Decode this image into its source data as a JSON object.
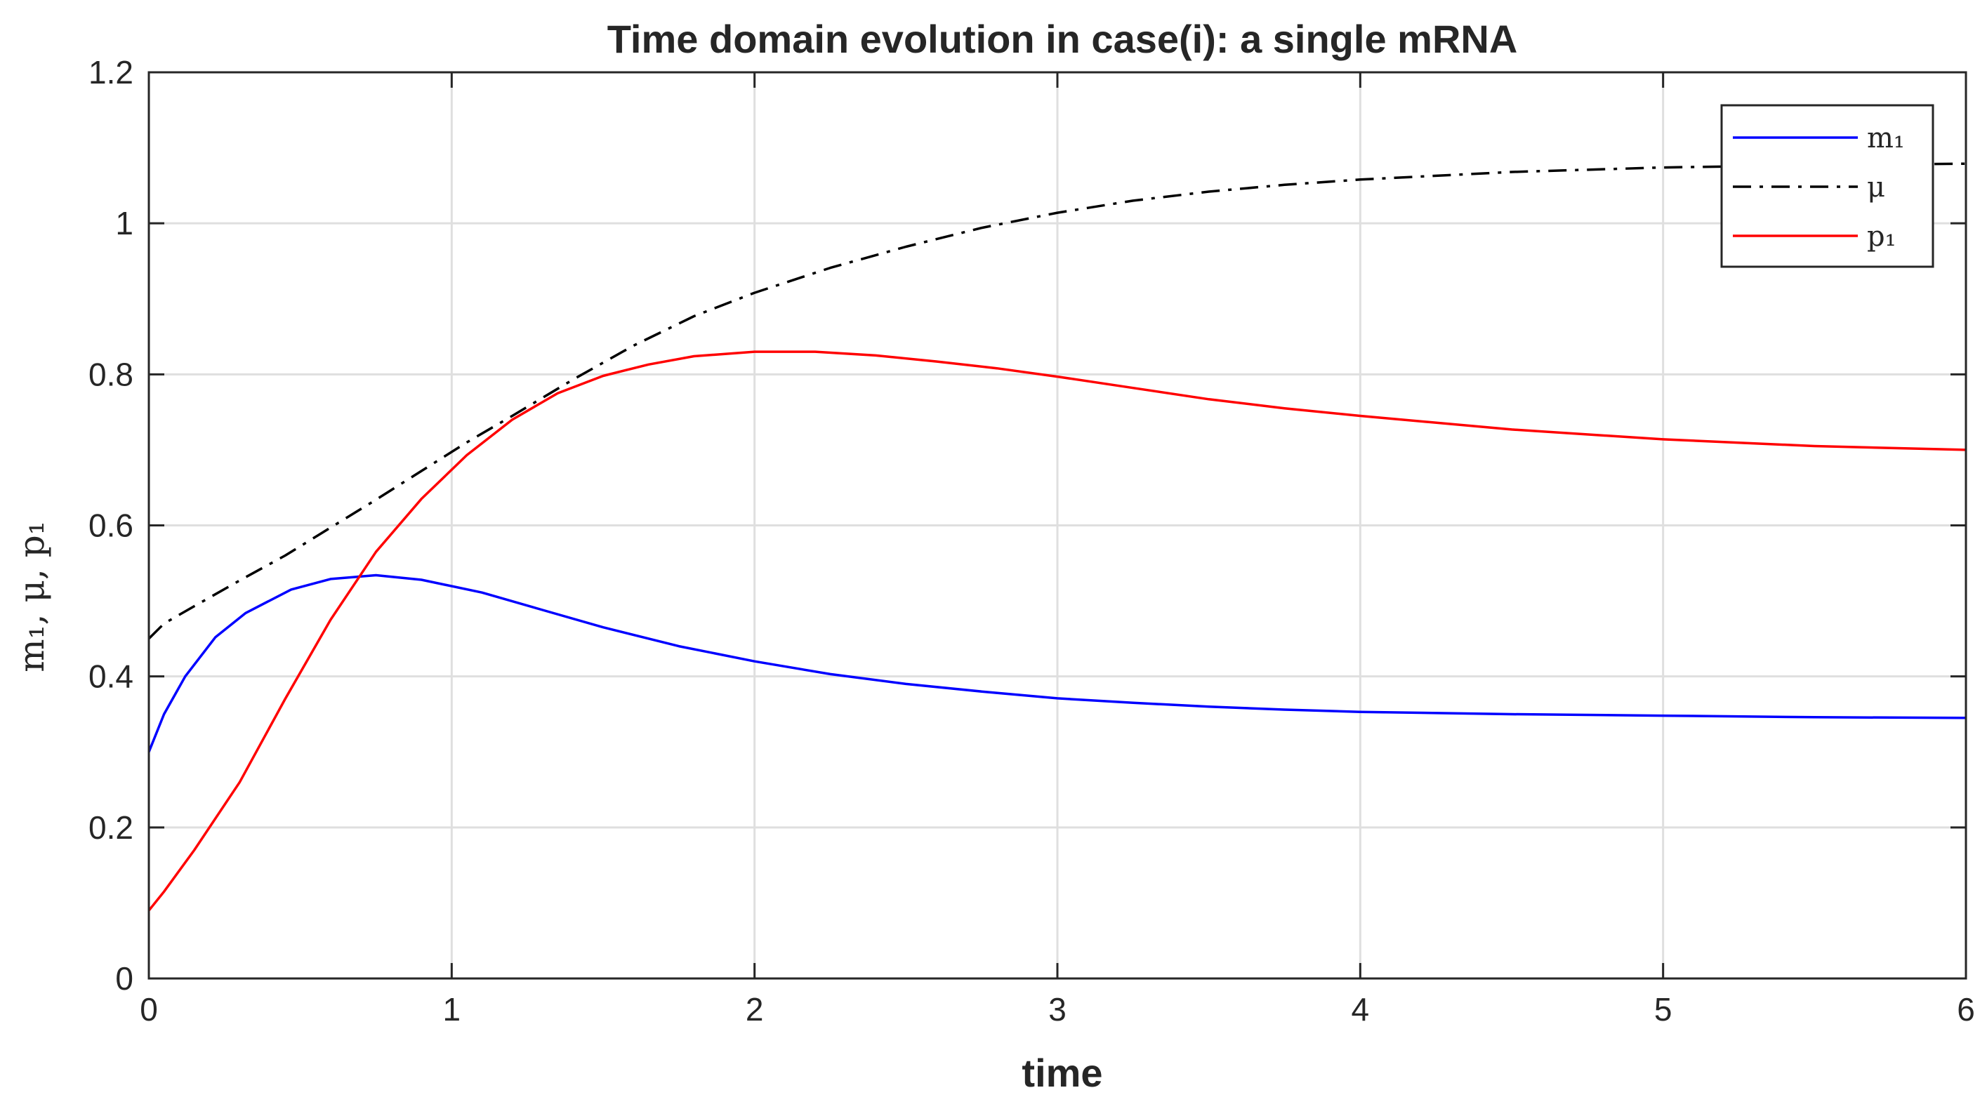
{
  "chart_data": {
    "type": "line",
    "title": "Time domain evolution in case(i): a single mRNA",
    "xlabel": "time",
    "ylabel": "m₁, μ, p₁",
    "xlim": [
      0,
      6
    ],
    "ylim": [
      0,
      1.2
    ],
    "xticks": [
      "0",
      "1",
      "2",
      "3",
      "4",
      "5",
      "6"
    ],
    "yticks": [
      "0",
      "0.2",
      "0.4",
      "0.6",
      "0.8",
      "1",
      "1.2"
    ],
    "grid": true,
    "legend_position": "top-right",
    "series": [
      {
        "name": "m₁",
        "color": "#0000ff",
        "dash": "solid",
        "x": [
          0,
          0.05,
          0.12,
          0.22,
          0.32,
          0.47,
          0.6,
          0.75,
          0.9,
          1.1,
          1.3,
          1.5,
          1.75,
          2.0,
          2.25,
          2.5,
          2.75,
          3.0,
          3.25,
          3.5,
          3.75,
          4.0,
          4.5,
          5.0,
          5.5,
          6.0
        ],
        "y": [
          0.3,
          0.35,
          0.4,
          0.452,
          0.484,
          0.515,
          0.529,
          0.534,
          0.528,
          0.511,
          0.488,
          0.465,
          0.44,
          0.42,
          0.403,
          0.39,
          0.38,
          0.371,
          0.365,
          0.36,
          0.356,
          0.353,
          0.35,
          0.348,
          0.346,
          0.345
        ]
      },
      {
        "name": "μ",
        "color": "#000000",
        "dash": "dash-dot",
        "x": [
          0,
          0.05,
          0.15,
          0.3,
          0.45,
          0.6,
          0.75,
          0.9,
          1.05,
          1.2,
          1.4,
          1.6,
          1.8,
          2.0,
          2.25,
          2.5,
          2.75,
          3.0,
          3.25,
          3.5,
          3.75,
          4.0,
          4.5,
          5.0,
          5.5,
          6.0
        ],
        "y": [
          0.45,
          0.47,
          0.493,
          0.527,
          0.56,
          0.597,
          0.634,
          0.672,
          0.71,
          0.745,
          0.793,
          0.838,
          0.877,
          0.908,
          0.941,
          0.969,
          0.994,
          1.014,
          1.03,
          1.042,
          1.051,
          1.058,
          1.068,
          1.074,
          1.077,
          1.079
        ]
      },
      {
        "name": "p₁",
        "color": "#ff0000",
        "dash": "solid",
        "x": [
          0,
          0.05,
          0.15,
          0.3,
          0.45,
          0.6,
          0.75,
          0.9,
          1.05,
          1.2,
          1.35,
          1.5,
          1.65,
          1.8,
          2.0,
          2.2,
          2.4,
          2.6,
          2.8,
          3.0,
          3.25,
          3.5,
          3.75,
          4.0,
          4.5,
          5.0,
          5.5,
          6.0
        ],
        "y": [
          0.09,
          0.115,
          0.17,
          0.26,
          0.37,
          0.475,
          0.565,
          0.635,
          0.693,
          0.74,
          0.775,
          0.798,
          0.813,
          0.824,
          0.83,
          0.83,
          0.825,
          0.817,
          0.808,
          0.797,
          0.782,
          0.767,
          0.755,
          0.745,
          0.727,
          0.714,
          0.705,
          0.7
        ]
      }
    ]
  }
}
